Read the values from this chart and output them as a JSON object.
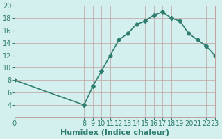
{
  "x": [
    0,
    8,
    9,
    10,
    11,
    12,
    13,
    14,
    15,
    16,
    17,
    18,
    19,
    20,
    21,
    22,
    23
  ],
  "y": [
    8,
    4,
    7,
    9.5,
    12,
    14.5,
    15.5,
    17,
    17.5,
    18.5,
    19,
    18,
    17.5,
    15.5,
    14.5,
    13.5,
    12
  ],
  "line_color": "#2e7d6e",
  "marker": "D",
  "marker_size": 3,
  "bg_color": "#d4f0ee",
  "grid_color_major": "#c0a0a0",
  "xlabel": "Humidex (Indice chaleur)",
  "xlabel_fontsize": 8,
  "xlabel_color": "#2e7d6e",
  "ylim": [
    2,
    20
  ],
  "xlim": [
    0,
    23
  ],
  "yticks": [
    4,
    6,
    8,
    10,
    12,
    14,
    16,
    18,
    20
  ],
  "xticks": [
    0,
    8,
    9,
    10,
    11,
    12,
    13,
    14,
    15,
    16,
    17,
    18,
    19,
    20,
    21,
    22,
    23
  ],
  "tick_fontsize": 7,
  "tick_color": "#2e7d6e",
  "line_width": 1.2
}
